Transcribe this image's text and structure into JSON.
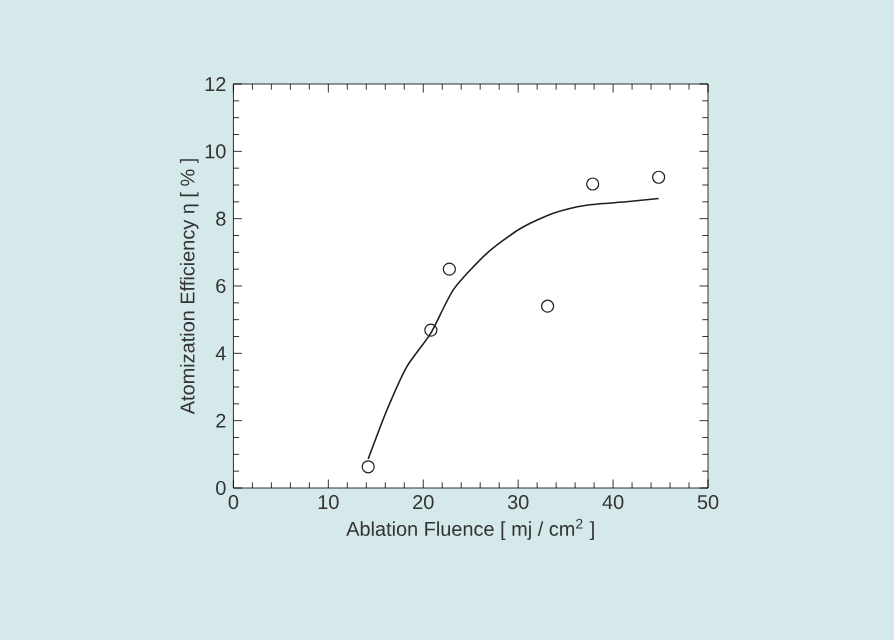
{
  "chart_data": {
    "type": "scatter",
    "xlabel": "Ablation Fluence [ mj / cm$^{2}$ ]",
    "ylabel": "Atomization Efficiency η [ % ]",
    "xlim": [
      0,
      50
    ],
    "xticks": [
      0,
      10,
      20,
      30,
      40,
      50
    ],
    "ylim": [
      0,
      12
    ],
    "yticks": [
      0,
      2,
      4,
      6,
      8,
      10,
      12
    ],
    "grid": false,
    "series": [
      {
        "color": "#231f20",
        "marker": "circle",
        "x": [
          14.2,
          20.8,
          22.75,
          33.1,
          37.85,
          44.8
        ],
        "values": [
          0.63,
          4.69,
          6.5,
          5.4,
          9.03,
          9.23
        ]
      },
      {
        "type": "line",
        "color": "#231f20",
        "marker": "none",
        "line_style": "solid",
        "x": [
          14.2,
          16.15,
          18.26,
          20.8,
          23.2,
          26.7,
          30.2,
          33.7,
          37.2,
          41.4,
          44.8
        ],
        "values": [
          0.86,
          2.3,
          3.6,
          4.6,
          5.9,
          6.97,
          7.7,
          8.16,
          8.4,
          8.5,
          8.6
        ]
      }
    ]
  }
}
